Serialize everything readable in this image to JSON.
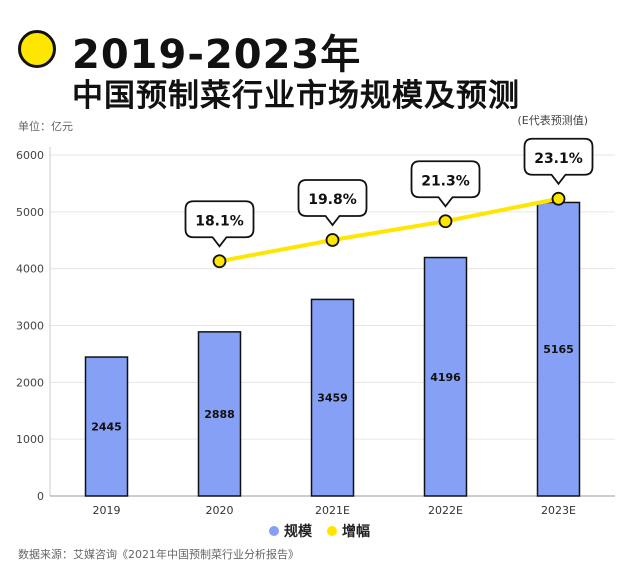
{
  "header": {
    "title_line1": "2019-2023年",
    "title_line2": "中国预制菜行业市场规模及预测"
  },
  "unit_label": "单位：亿元",
  "note": "(E代表预测值)",
  "source": "数据来源：艾媒咨询《2021年中国预制菜行业分析报告》",
  "colors": {
    "bar": "#86a0f5",
    "line": "#ffe600",
    "outline": "#111111",
    "accent_dot": "#ffe600"
  },
  "chart_data": {
    "type": "bar",
    "categories": [
      "2019",
      "2020",
      "2021E",
      "2022E",
      "2023E"
    ],
    "series": [
      {
        "name": "规模",
        "type": "bar",
        "values": [
          2445,
          2888,
          3459,
          4196,
          5165
        ]
      },
      {
        "name": "增幅",
        "type": "line",
        "values": [
          null,
          18.1,
          19.8,
          21.3,
          23.1
        ],
        "labels": [
          "",
          "18.1%",
          "19.8%",
          "21.3%",
          "23.1%"
        ]
      }
    ],
    "yticks": [
      "0",
      "1000",
      "2000",
      "3000",
      "4000",
      "5000",
      "6000"
    ],
    "ylim": [
      0,
      6000
    ],
    "legend": [
      "规模",
      "增幅"
    ],
    "legend_position": "bottom",
    "grid": true
  }
}
